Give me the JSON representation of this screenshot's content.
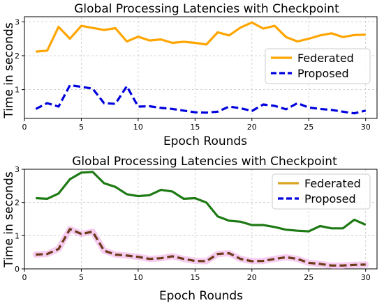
{
  "chart_data": [
    {
      "type": "line",
      "title": "Global Processing Latencies with Checkpoint",
      "xlabel": "Epoch Rounds",
      "ylabel": "Time in seconds",
      "xlim": [
        0,
        31
      ],
      "ylim": [
        0.15,
        3.15
      ],
      "xticks": [
        0,
        5,
        10,
        15,
        20,
        25,
        30
      ],
      "yticks": [
        1,
        2,
        3
      ],
      "grid": true,
      "legend_position": "center-right",
      "x": [
        1,
        2,
        3,
        4,
        5,
        6,
        7,
        8,
        9,
        10,
        11,
        12,
        13,
        14,
        15,
        16,
        17,
        18,
        19,
        20,
        21,
        22,
        23,
        24,
        25,
        26,
        27,
        28,
        29,
        30
      ],
      "series": [
        {
          "name": "Federated",
          "legend_color": "#FFA500",
          "line_color": "#FFA500",
          "style": "solid",
          "values": [
            2.12,
            2.15,
            2.85,
            2.5,
            2.88,
            2.82,
            2.76,
            2.81,
            2.42,
            2.56,
            2.45,
            2.48,
            2.38,
            2.41,
            2.38,
            2.33,
            2.69,
            2.6,
            2.83,
            2.98,
            2.8,
            2.88,
            2.55,
            2.42,
            2.5,
            2.6,
            2.66,
            2.55,
            2.61,
            2.62
          ]
        },
        {
          "name": "Proposed",
          "legend_color": "#0000DD",
          "line_color": "#0000DD",
          "style": "dashed",
          "values": [
            0.43,
            0.6,
            0.5,
            1.13,
            1.08,
            1.03,
            0.6,
            0.58,
            1.1,
            0.5,
            0.51,
            0.46,
            0.43,
            0.38,
            0.33,
            0.32,
            0.35,
            0.5,
            0.45,
            0.37,
            0.56,
            0.52,
            0.42,
            0.6,
            0.47,
            0.43,
            0.4,
            0.35,
            0.3,
            0.38
          ]
        }
      ]
    },
    {
      "type": "line",
      "title": "Global Processing Latencies with Checkpoint",
      "xlabel": "Epoch Rounds",
      "ylabel": "Time in seconds",
      "xlim": [
        0,
        31
      ],
      "ylim": [
        0,
        3
      ],
      "xticks": [
        0,
        5,
        10,
        15,
        20,
        25,
        30
      ],
      "yticks": [
        0,
        1,
        2,
        3
      ],
      "grid": true,
      "legend_position": "top-right",
      "x": [
        1,
        2,
        3,
        4,
        5,
        6,
        7,
        8,
        9,
        10,
        11,
        12,
        13,
        14,
        15,
        16,
        17,
        18,
        19,
        20,
        21,
        22,
        23,
        24,
        25,
        26,
        27,
        28,
        29,
        30
      ],
      "series": [
        {
          "name": "Federated",
          "legend_color": "#DAA520",
          "line_color": "#1E7A14",
          "style": "solid",
          "values": [
            2.13,
            2.11,
            2.27,
            2.7,
            2.9,
            2.92,
            2.58,
            2.47,
            2.25,
            2.19,
            2.22,
            2.38,
            2.33,
            2.11,
            2.13,
            2.0,
            1.58,
            1.45,
            1.42,
            1.32,
            1.32,
            1.26,
            1.18,
            1.15,
            1.13,
            1.29,
            1.22,
            1.22,
            1.48,
            1.33
          ]
        },
        {
          "name": "Proposed",
          "legend_color": "#0000DD",
          "line_color": "#6B3A16",
          "glow_color": "#F5C8F0",
          "style": "dashed",
          "values": [
            0.43,
            0.45,
            0.6,
            1.2,
            1.05,
            1.12,
            0.55,
            0.43,
            0.4,
            0.36,
            0.3,
            0.32,
            0.38,
            0.3,
            0.24,
            0.23,
            0.45,
            0.47,
            0.3,
            0.23,
            0.24,
            0.3,
            0.35,
            0.3,
            0.18,
            0.15,
            0.1,
            0.1,
            0.12,
            0.13
          ]
        }
      ]
    }
  ]
}
